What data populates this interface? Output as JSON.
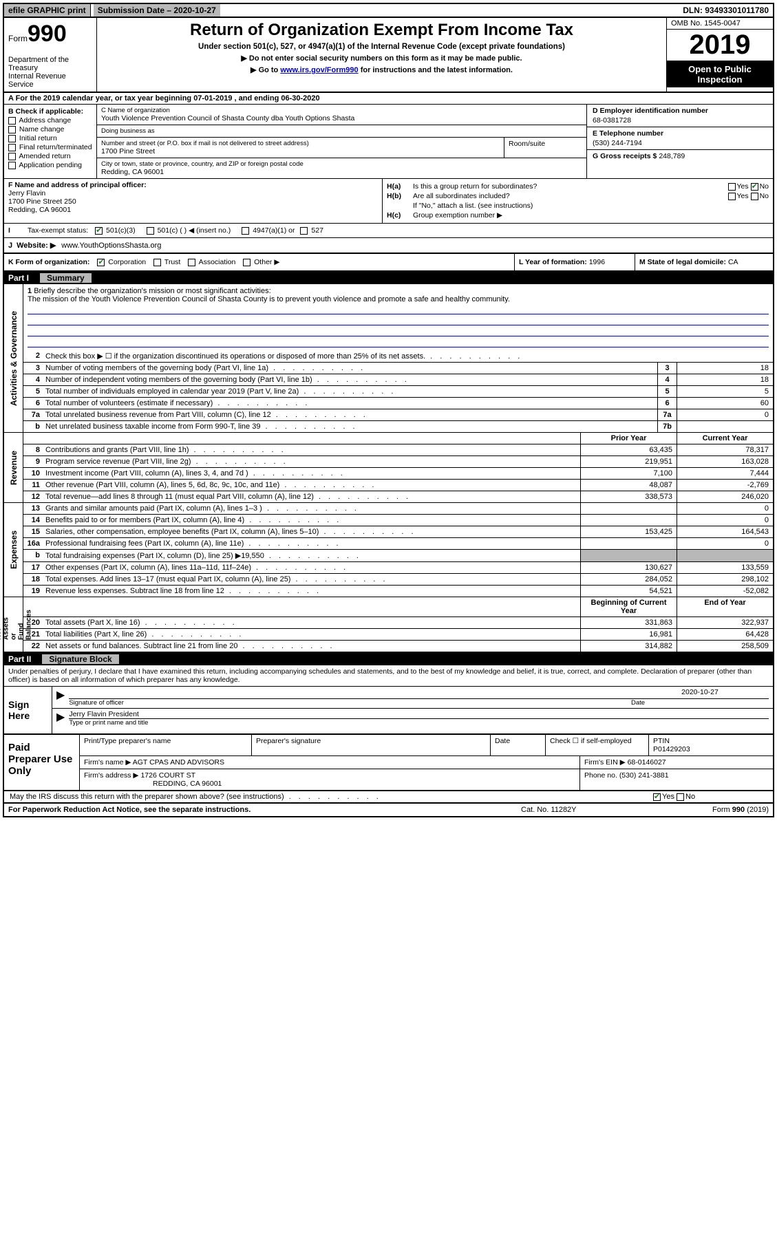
{
  "topbar": {
    "efile": "efile GRAPHIC print",
    "submission_label": "Submission Date – 2020-10-27",
    "dln": "DLN: 93493301011780"
  },
  "header": {
    "form_word": "Form",
    "form_num": "990",
    "dept": "Department of the Treasury\nInternal Revenue Service",
    "title": "Return of Organization Exempt From Income Tax",
    "sub1": "Under section 501(c), 527, or 4947(a)(1) of the Internal Revenue Code (except private foundations)",
    "sub2": "▶ Do not enter social security numbers on this form as it may be made public.",
    "sub3_pre": "▶ Go to ",
    "sub3_link": "www.irs.gov/Form990",
    "sub3_post": " for instructions and the latest information.",
    "omb": "OMB No. 1545-0047",
    "year": "2019",
    "open": "Open to Public Inspection"
  },
  "lineA": "A For the 2019 calendar year, or tax year beginning 07-01-2019    , and ending 06-30-2020",
  "B": {
    "title": "B Check if applicable:",
    "items": [
      "Address change",
      "Name change",
      "Initial return",
      "Final return/terminated",
      "Amended return",
      "Application pending"
    ]
  },
  "C": {
    "name_label": "C Name of organization",
    "name": "Youth Violence Prevention Council of Shasta County dba Youth Options Shasta",
    "dba_label": "Doing business as",
    "street_label": "Number and street (or P.O. box if mail is not delivered to street address)",
    "street": "1700 Pine Street",
    "room_label": "Room/suite",
    "city_label": "City or town, state or province, country, and ZIP or foreign postal code",
    "city": "Redding, CA  96001"
  },
  "D": {
    "label": "D Employer identification number",
    "val": "68-0381728"
  },
  "E": {
    "label": "E Telephone number",
    "val": "(530) 244-7194"
  },
  "G": {
    "label": "G Gross receipts $",
    "val": "248,789"
  },
  "F": {
    "label": "F  Name and address of principal officer:",
    "name": "Jerry Flavin",
    "addr1": "1700 Pine Street 250",
    "addr2": "Redding, CA  96001"
  },
  "H": {
    "a_label": "H(a)",
    "a_q": "Is this a group return for subordinates?",
    "b_label": "H(b)",
    "b_q": "Are all subordinates included?",
    "b_note": "If \"No,\" attach a list. (see instructions)",
    "c_label": "H(c)",
    "c_q": "Group exemption number ▶"
  },
  "I": {
    "label": "I",
    "text": "Tax-exempt status:",
    "opt1": "501(c)(3)",
    "opt2": "501(c) (  ) ◀ (insert no.)",
    "opt3": "4947(a)(1) or",
    "opt4": "527"
  },
  "J": {
    "label": "J",
    "text": "Website: ▶",
    "val": "www.YouthOptionsShasta.org"
  },
  "K": {
    "text": "K Form of organization:",
    "opts": [
      "Corporation",
      "Trust",
      "Association",
      "Other ▶"
    ]
  },
  "L": {
    "text": "L Year of formation:",
    "val": "1996"
  },
  "M": {
    "text": "M State of legal domicile:",
    "val": "CA"
  },
  "part1": {
    "num": "Part I",
    "title": "Summary"
  },
  "mission": {
    "num": "1",
    "label": "Briefly describe the organization's mission or most significant activities:",
    "text": "The mission of the Youth Violence Prevention Council of Shasta County is to prevent youth violence and promote a safe and healthy community."
  },
  "gov_lines": [
    {
      "n": "2",
      "d": "Check this box ▶ ☐  if the organization discontinued its operations or disposed of more than 25% of its net assets.",
      "box": "",
      "v": ""
    },
    {
      "n": "3",
      "d": "Number of voting members of the governing body (Part VI, line 1a)",
      "box": "3",
      "v": "18"
    },
    {
      "n": "4",
      "d": "Number of independent voting members of the governing body (Part VI, line 1b)",
      "box": "4",
      "v": "18"
    },
    {
      "n": "5",
      "d": "Total number of individuals employed in calendar year 2019 (Part V, line 2a)",
      "box": "5",
      "v": "5"
    },
    {
      "n": "6",
      "d": "Total number of volunteers (estimate if necessary)",
      "box": "6",
      "v": "60"
    },
    {
      "n": "7a",
      "d": "Total unrelated business revenue from Part VIII, column (C), line 12",
      "box": "7a",
      "v": "0"
    },
    {
      "n": "b",
      "d": "Net unrelated business taxable income from Form 990-T, line 39",
      "box": "7b",
      "v": ""
    }
  ],
  "pyhdr": {
    "c1": "Prior Year",
    "c2": "Current Year"
  },
  "rev_lines": [
    {
      "n": "8",
      "d": "Contributions and grants (Part VIII, line 1h)",
      "c1": "63,435",
      "c2": "78,317"
    },
    {
      "n": "9",
      "d": "Program service revenue (Part VIII, line 2g)",
      "c1": "219,951",
      "c2": "163,028"
    },
    {
      "n": "10",
      "d": "Investment income (Part VIII, column (A), lines 3, 4, and 7d )",
      "c1": "7,100",
      "c2": "7,444"
    },
    {
      "n": "11",
      "d": "Other revenue (Part VIII, column (A), lines 5, 6d, 8c, 9c, 10c, and 11e)",
      "c1": "48,087",
      "c2": "-2,769"
    },
    {
      "n": "12",
      "d": "Total revenue—add lines 8 through 11 (must equal Part VIII, column (A), line 12)",
      "c1": "338,573",
      "c2": "246,020"
    }
  ],
  "exp_lines": [
    {
      "n": "13",
      "d": "Grants and similar amounts paid (Part IX, column (A), lines 1–3 )",
      "c1": "",
      "c2": "0"
    },
    {
      "n": "14",
      "d": "Benefits paid to or for members (Part IX, column (A), line 4)",
      "c1": "",
      "c2": "0"
    },
    {
      "n": "15",
      "d": "Salaries, other compensation, employee benefits (Part IX, column (A), lines 5–10)",
      "c1": "153,425",
      "c2": "164,543"
    },
    {
      "n": "16a",
      "d": "Professional fundraising fees (Part IX, column (A), line 11e)",
      "c1": "",
      "c2": "0"
    },
    {
      "n": "b",
      "d": "Total fundraising expenses (Part IX, column (D), line 25) ▶19,550",
      "c1": "GREY",
      "c2": "GREY"
    },
    {
      "n": "17",
      "d": "Other expenses (Part IX, column (A), lines 11a–11d, 11f–24e)",
      "c1": "130,627",
      "c2": "133,559"
    },
    {
      "n": "18",
      "d": "Total expenses. Add lines 13–17 (must equal Part IX, column (A), line 25)",
      "c1": "284,052",
      "c2": "298,102"
    },
    {
      "n": "19",
      "d": "Revenue less expenses. Subtract line 18 from line 12",
      "c1": "54,521",
      "c2": "-52,082"
    }
  ],
  "nahdr": {
    "c1": "Beginning of Current Year",
    "c2": "End of Year"
  },
  "na_lines": [
    {
      "n": "20",
      "d": "Total assets (Part X, line 16)",
      "c1": "331,863",
      "c2": "322,937"
    },
    {
      "n": "21",
      "d": "Total liabilities (Part X, line 26)",
      "c1": "16,981",
      "c2": "64,428"
    },
    {
      "n": "22",
      "d": "Net assets or fund balances. Subtract line 21 from line 20",
      "c1": "314,882",
      "c2": "258,509"
    }
  ],
  "sidelabels": {
    "gov": "Activities & Governance",
    "rev": "Revenue",
    "exp": "Expenses",
    "na": "Net Assets or\nFund Balances"
  },
  "part2": {
    "num": "Part II",
    "title": "Signature Block"
  },
  "sig": {
    "decl": "Under penalties of perjury, I declare that I have examined this return, including accompanying schedules and statements, and to the best of my knowledge and belief, it is true, correct, and complete. Declaration of preparer (other than officer) is based on all information of which preparer has any knowledge.",
    "sign_here": "Sign Here",
    "sig_officer": "Signature of officer",
    "date_label": "Date",
    "date_val": "2020-10-27",
    "name_title": "Jerry Flavin  President",
    "type_name": "Type or print name and title"
  },
  "paid": {
    "label": "Paid Preparer Use Only",
    "h1": "Print/Type preparer's name",
    "h2": "Preparer's signature",
    "h3": "Date",
    "h4_pre": "Check ☐ if self-employed",
    "h5": "PTIN",
    "ptin": "P01429203",
    "firm_name_l": "Firm's name    ▶",
    "firm_name": "AGT CPAS AND ADVISORS",
    "firm_ein_l": "Firm's EIN ▶",
    "firm_ein": "68-0146027",
    "firm_addr_l": "Firm's address ▶",
    "firm_addr1": "1726 COURT ST",
    "firm_addr2": "REDDING, CA  96001",
    "phone_l": "Phone no.",
    "phone": "(530) 241-3881"
  },
  "discuss": "May the IRS discuss this return with the preparer shown above? (see instructions)",
  "footer": {
    "l": "For Paperwork Reduction Act Notice, see the separate instructions.",
    "m": "Cat. No. 11282Y",
    "r": "Form 990 (2019)"
  }
}
